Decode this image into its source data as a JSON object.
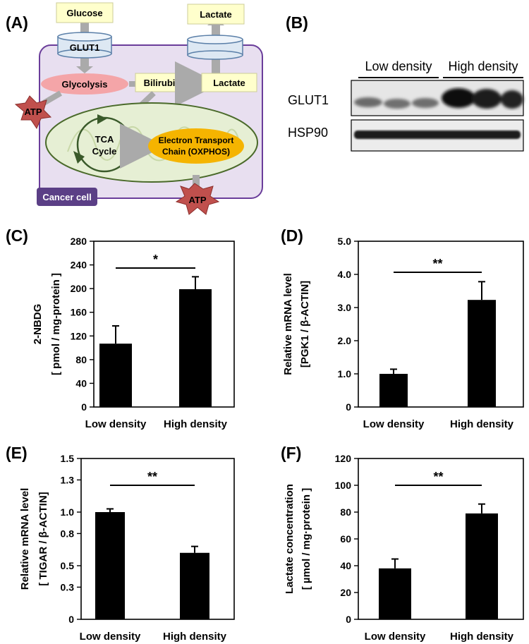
{
  "diagram": {
    "label": "(A)",
    "glucose": "Glucose",
    "lactate_top": "Lactate",
    "glut1": "GLUT1",
    "glycolysis": "Glycolysis",
    "bilirubin": "Bilirubin",
    "lactate_inner": "Lactate",
    "atp1": "ATP",
    "atp2": "ATP",
    "tca_line1": "TCA",
    "tca_line2": "Cycle",
    "etc_line1": "Electron Transport",
    "etc_line2": "Chain (OXPHOS)",
    "cancer_cell": "Cancer cell",
    "colors": {
      "cell": "#e8dff0",
      "cell_border": "#6a3d9a",
      "mito": "#e6efd4",
      "mito_border": "#4a6a2a",
      "glycolysis": "#f4a5a8",
      "etc": "#f5b400",
      "atp": "#c0504d",
      "label_box": "#ffffcc",
      "cancer_badge": "#5b3f86"
    }
  },
  "blot": {
    "label": "(B)",
    "groups": [
      "Low density",
      "High density"
    ],
    "rows": [
      "GLUT1",
      "HSP90"
    ]
  },
  "chart_data": [
    {
      "id": "C",
      "label": "(C)",
      "type": "bar",
      "categories": [
        "Low density",
        "High density"
      ],
      "values": [
        107,
        199
      ],
      "errors": [
        30,
        21
      ],
      "ylabel_lines": [
        "2-NBDG",
        "[ pmol / mg-protein ]"
      ],
      "ylim": [
        0,
        280
      ],
      "yticks": [
        "0",
        "40",
        "80",
        "120",
        "160",
        "200",
        "240",
        "280"
      ],
      "significance": "*"
    },
    {
      "id": "D",
      "label": "(D)",
      "type": "bar",
      "categories": [
        "Low density",
        "High density"
      ],
      "values": [
        1.0,
        3.23
      ],
      "errors": [
        0.14,
        0.55
      ],
      "ylabel_lines": [
        "Relative mRNA level",
        "[PGK1 / β-ACTIN]"
      ],
      "ylim": [
        0,
        5
      ],
      "yticks": [
        "0",
        "1.0",
        "2.0",
        "3.0",
        "4.0",
        "5.0"
      ],
      "significance": "**"
    },
    {
      "id": "E",
      "label": "(E)",
      "type": "bar",
      "categories": [
        "Low density",
        "High density"
      ],
      "values": [
        1.0,
        0.62
      ],
      "errors": [
        0.03,
        0.06
      ],
      "ylabel_lines": [
        "Relative mRNA level",
        "[ TIGAR / β-ACTIN]"
      ],
      "ylim": [
        0,
        1.5
      ],
      "yticks": [
        "0",
        "0.3",
        "0.5",
        "0.8",
        "1.0",
        "1.3",
        "1.5"
      ],
      "significance": "**"
    },
    {
      "id": "F",
      "label": "(F)",
      "type": "bar",
      "categories": [
        "Low density",
        "High density"
      ],
      "values": [
        38,
        79
      ],
      "errors": [
        7,
        7
      ],
      "ylabel_lines": [
        "Lactate concentration",
        "[ µmol / mg·protein ]"
      ],
      "ylim": [
        0,
        120
      ],
      "yticks": [
        "0",
        "20",
        "40",
        "60",
        "80",
        "100",
        "120"
      ],
      "significance": "**"
    }
  ]
}
